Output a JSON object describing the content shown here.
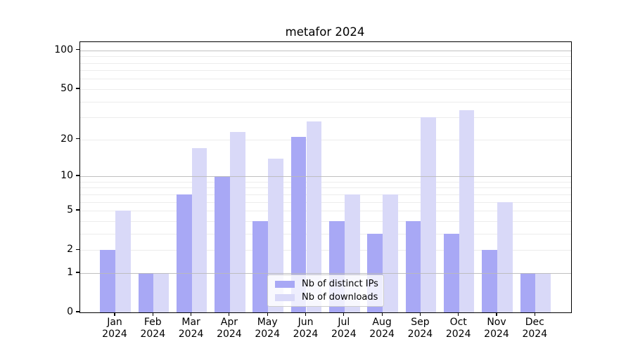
{
  "title": "metafor 2024",
  "chart_data": {
    "type": "bar",
    "title": "metafor 2024",
    "months": [
      "Jan",
      "Feb",
      "Mar",
      "Apr",
      "May",
      "Jun",
      "Jul",
      "Aug",
      "Sep",
      "Oct",
      "Nov",
      "Dec"
    ],
    "year": "2024",
    "series": [
      {
        "name": "Nb of distinct IPs",
        "color": "#a8a8f5",
        "values": [
          2,
          1,
          7,
          10,
          4,
          21,
          4,
          3,
          4,
          3,
          2,
          1
        ]
      },
      {
        "name": "Nb of downloads",
        "color": "#d9d9f8",
        "values": [
          5,
          1,
          17,
          23,
          14,
          28,
          7,
          7,
          30,
          34,
          6,
          1
        ]
      }
    ],
    "yscale": "log1p",
    "ylim": [
      0,
      100
    ],
    "yticks": [
      0,
      1,
      2,
      5,
      10,
      20,
      50,
      100
    ],
    "major_gridlines": [
      1,
      10,
      100
    ],
    "minor_gridlines": [
      2,
      3,
      4,
      5,
      6,
      7,
      8,
      9,
      20,
      30,
      40,
      50,
      60,
      70,
      80,
      90
    ],
    "grid": true,
    "legend_position": "inside-bottom-center",
    "xlabel": "",
    "ylabel": ""
  },
  "colors": {
    "bar_ips": "#a8a8f5",
    "bar_downloads": "#d9d9f8",
    "grid_major": "#b9b9b9",
    "grid_minor": "#ececec",
    "axis": "#000000",
    "legend_border": "#cccccc"
  }
}
